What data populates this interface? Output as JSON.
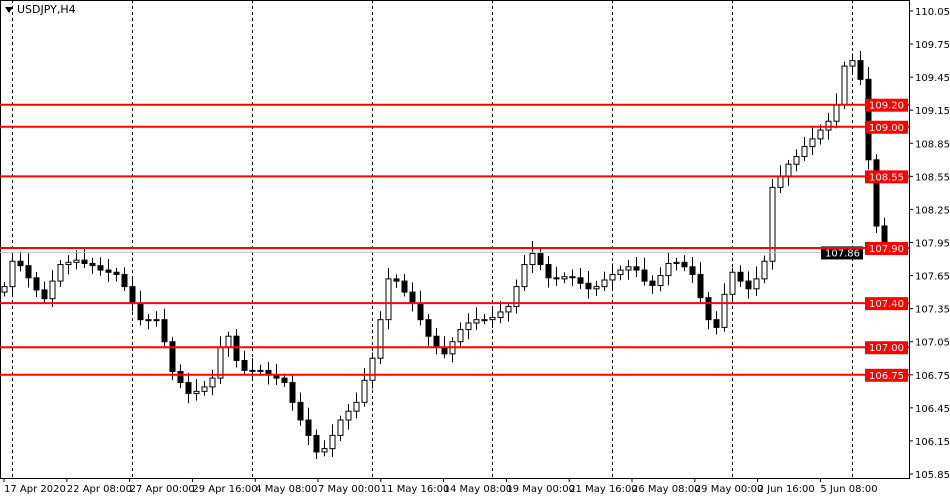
{
  "title": "USDJPY,H4",
  "colors": {
    "bull": "#ffffff",
    "bear": "#000000",
    "outline": "#000000",
    "level": "#ff0000",
    "grid": "#000000",
    "current_label_bg": "#000000"
  },
  "chart_data": {
    "type": "candlestick",
    "symbol": "USDJPY",
    "timeframe": "H4",
    "ylim": [
      105.85,
      110.05
    ],
    "grid": true,
    "y_ticks": [
      "110.05",
      "109.75",
      "109.45",
      "109.15",
      "108.85",
      "108.55",
      "108.25",
      "107.95",
      "107.65",
      "107.35",
      "107.05",
      "106.75",
      "106.45",
      "106.15",
      "105.85"
    ],
    "x_ticks": [
      "17 Apr 2020",
      "22 Apr 08:00",
      "27 Apr 00:00",
      "29 Apr 16:00",
      "4 May 08:00",
      "7 May 00:00",
      "11 May 16:00",
      "14 May 08:00",
      "19 May 00:00",
      "21 May 16:00",
      "26 May 08:00",
      "29 May 00:00",
      "2 Jun 16:00",
      "5 Jun 08:00"
    ],
    "close": [
      107.55,
      107.78,
      107.74,
      107.63,
      107.52,
      107.44,
      107.6,
      107.75,
      107.77,
      107.79,
      107.76,
      107.74,
      107.7,
      107.68,
      107.66,
      107.55,
      107.4,
      107.25,
      107.25,
      107.25,
      107.05,
      106.78,
      106.68,
      106.58,
      106.6,
      106.64,
      106.72,
      107.0,
      107.1,
      106.88,
      106.79,
      106.79,
      106.79,
      106.75,
      106.72,
      106.68,
      106.5,
      106.34,
      106.2,
      106.05,
      106.08,
      106.2,
      106.34,
      106.42,
      106.5,
      106.7,
      106.9,
      107.25,
      107.62,
      107.6,
      107.5,
      107.4,
      107.25,
      107.1,
      107.0,
      106.94,
      107.05,
      107.16,
      107.22,
      107.25,
      107.25,
      107.27,
      107.32,
      107.37,
      107.55,
      107.75,
      107.85,
      107.75,
      107.63,
      107.62,
      107.64,
      107.63,
      107.58,
      107.53,
      107.55,
      107.61,
      107.66,
      107.7,
      107.73,
      107.7,
      107.6,
      107.56,
      107.65,
      107.76,
      107.77,
      107.73,
      107.66,
      107.45,
      107.25,
      107.18,
      107.48,
      107.68,
      107.6,
      107.53,
      107.62,
      107.78,
      108.45,
      108.55,
      108.66,
      108.73,
      108.82,
      108.89,
      108.97,
      109.05,
      109.2,
      109.55,
      109.6,
      109.43,
      108.7,
      108.1,
      107.88
    ],
    "levels": [
      "109.20",
      "109.00",
      "108.55",
      "107.90",
      "107.40",
      "107.00",
      "106.75"
    ],
    "current_price": "107.86"
  }
}
